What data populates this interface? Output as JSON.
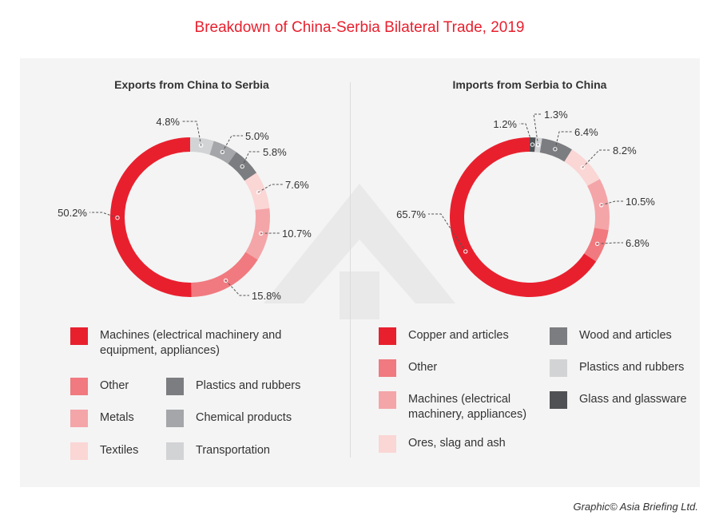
{
  "title": "Breakdown of China-Serbia Bilateral Trade, 2019",
  "credit": "Graphic© Asia Briefing Ltd.",
  "chart_data": [
    {
      "type": "donut",
      "title": "Exports from China to Serbia",
      "direction": "clockwise from top",
      "slices": [
        {
          "name": "Transportation",
          "value": 4.8,
          "label": "4.8%",
          "color": "#d2d3d5"
        },
        {
          "name": "Chemical products",
          "value": 5.0,
          "label": "5.0%",
          "color": "#a5a6a9"
        },
        {
          "name": "Plastics and rubbers",
          "value": 5.8,
          "label": "5.8%",
          "color": "#7c7d80"
        },
        {
          "name": "Textiles",
          "value": 7.6,
          "label": "7.6%",
          "color": "#fad6d5"
        },
        {
          "name": "Metals",
          "value": 10.7,
          "label": "10.7%",
          "color": "#f4a5a8"
        },
        {
          "name": "Other",
          "value": 15.8,
          "label": "15.8%",
          "color": "#f07a7f"
        },
        {
          "name": "Machines (electrical machinery and equipment, appliances)",
          "value": 50.2,
          "label": "50.2%",
          "color": "#e8202e"
        }
      ],
      "legend": [
        "Machines (electrical machinery and equipment, appliances)",
        "Other",
        "Plastics and rubbers",
        "Metals",
        "Chemical products",
        "Textiles",
        "Transportation"
      ]
    },
    {
      "type": "donut",
      "title": "Imports from Serbia to China",
      "direction": "clockwise from top",
      "slices": [
        {
          "name": "Glass and glassware",
          "value": 1.2,
          "label": "1.2%",
          "color": "#505154"
        },
        {
          "name": "Plastics and rubbers",
          "value": 1.3,
          "label": "1.3%",
          "color": "#d2d3d5"
        },
        {
          "name": "Wood and articles",
          "value": 6.4,
          "label": "6.4%",
          "color": "#7c7d80"
        },
        {
          "name": "Ores, slag and ash",
          "value": 8.2,
          "label": "8.2%",
          "color": "#fad6d5"
        },
        {
          "name": "Machines (electrical machinery, appliances)",
          "value": 10.5,
          "label": "10.5%",
          "color": "#f4a5a8"
        },
        {
          "name": "Other",
          "value": 6.8,
          "label": "6.8%",
          "color": "#f07a7f"
        },
        {
          "name": "Copper and articles",
          "value": 65.7,
          "label": "65.7%",
          "color": "#e8202e"
        }
      ],
      "legend": [
        "Copper and articles",
        "Wood and articles",
        "Other",
        "Plastics and rubbers",
        "Machines (electrical machinery, appliances)",
        "Glass and glassware",
        "Ores, slag and ash"
      ]
    }
  ]
}
